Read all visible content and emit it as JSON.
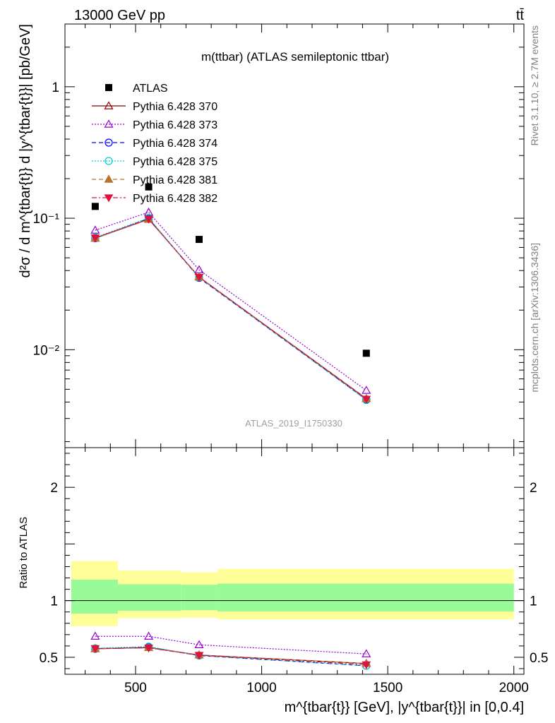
{
  "header": {
    "left": "13000 GeV pp",
    "right": "tt̄"
  },
  "side_labels": {
    "rivet": "Rivet 3.1.10, ≥ 2.7M events",
    "mcplots": "mcplots.cern.ch [arXiv:1306.3436]"
  },
  "chart_data": [
    {
      "type": "scatter",
      "panel": "main",
      "title": "m(ttbar) (ATLAS semileptonic ttbar)",
      "watermark": "ATLAS_2019_I1750330",
      "ylabel": "d²σ / d m^{tbar{t}} d |y^{tbar{t}}| [pb/GeV]",
      "yscale": "log",
      "ylim": [
        0.0018,
        3.0
      ],
      "xlim": [
        220,
        2040
      ],
      "yticks": [
        {
          "value": 1,
          "label": "1"
        },
        {
          "value": 0.1,
          "label": "10⁻¹"
        },
        {
          "value": 0.01,
          "label": "10⁻²"
        }
      ],
      "legend_position": "top-left",
      "x": [
        340,
        552,
        752,
        1415
      ],
      "series": [
        {
          "name": "ATLAS",
          "color": "#000000",
          "marker": "square",
          "line": "none",
          "values": [
            0.123,
            0.173,
            0.069,
            0.0094
          ]
        },
        {
          "name": "Pythia 6.428 370",
          "color": "#8b0000",
          "marker": "triangle-open",
          "line": "solid",
          "values": [
            0.0705,
            0.0985,
            0.0357,
            0.00425
          ]
        },
        {
          "name": "Pythia 6.428 373",
          "color": "#9400d3",
          "marker": "triangle-open",
          "line": "dotted",
          "values": [
            0.081,
            0.111,
            0.0405,
            0.0049
          ]
        },
        {
          "name": "Pythia 6.428 374",
          "color": "#0000ff",
          "marker": "circle-open",
          "line": "dashed",
          "values": [
            0.0705,
            0.0995,
            0.0352,
            0.00418
          ]
        },
        {
          "name": "Pythia 6.428 375",
          "color": "#00ced1",
          "marker": "circle-open",
          "line": "dotted",
          "values": [
            0.0715,
            0.1005,
            0.0355,
            0.00414
          ]
        },
        {
          "name": "Pythia 6.428 381",
          "color": "#b87333",
          "marker": "triangle-filled",
          "line": "dashed",
          "values": [
            0.0703,
            0.0978,
            0.0358,
            0.00425
          ]
        },
        {
          "name": "Pythia 6.428 382",
          "color": "#dc143c",
          "marker": "triangle-down-filled",
          "line": "dashdot",
          "values": [
            0.071,
            0.0985,
            0.0356,
            0.00421
          ]
        }
      ]
    },
    {
      "type": "scatter",
      "panel": "ratio",
      "xlabel": "m^{tbar{t}} [GeV], |y^{tbar{t}}| in [0,0.4]",
      "ylabel": "Ratio to ATLAS",
      "yscale": "linear",
      "ylim": [
        0.35,
        2.35
      ],
      "xlim": [
        220,
        2040
      ],
      "xticks": [
        500,
        1000,
        1500,
        2000
      ],
      "yticks": [
        {
          "value": 0.5,
          "label": "0.5"
        },
        {
          "value": 1,
          "label": "1"
        },
        {
          "value": 2,
          "label": "2"
        }
      ],
      "bands": [
        {
          "x0": 245,
          "x1": 430,
          "inner": [
            0.885,
            1.185
          ],
          "outer": [
            0.775,
            1.35
          ]
        },
        {
          "x0": 430,
          "x1": 680,
          "inner": [
            0.91,
            1.145
          ],
          "outer": [
            0.845,
            1.265
          ]
        },
        {
          "x0": 680,
          "x1": 825,
          "inner": [
            0.915,
            1.14
          ],
          "outer": [
            0.85,
            1.25
          ]
        },
        {
          "x0": 825,
          "x1": 2000,
          "inner": [
            0.905,
            1.15
          ],
          "outer": [
            0.835,
            1.28
          ]
        }
      ],
      "band_colors": {
        "inner": "#98fb98",
        "outer": "#ffff99"
      },
      "reference_line": 1,
      "x": [
        340,
        552,
        752,
        1415
      ],
      "series": [
        {
          "name": "Pythia 6.428 370",
          "color": "#8b0000",
          "marker": "triangle-open",
          "line": "solid",
          "values": [
            0.575,
            0.585,
            0.52,
            0.445
          ]
        },
        {
          "name": "Pythia 6.428 373",
          "color": "#9400d3",
          "marker": "triangle-open",
          "line": "dotted",
          "values": [
            0.685,
            0.685,
            0.61,
            0.53
          ]
        },
        {
          "name": "Pythia 6.428 374",
          "color": "#0000ff",
          "marker": "circle-open",
          "line": "dashed",
          "values": [
            0.575,
            0.59,
            0.515,
            0.425
          ]
        },
        {
          "name": "Pythia 6.428 375",
          "color": "#00ced1",
          "marker": "circle-open",
          "line": "dotted",
          "values": [
            0.58,
            0.595,
            0.515,
            0.425
          ]
        },
        {
          "name": "Pythia 6.428 381",
          "color": "#b87333",
          "marker": "triangle-filled",
          "line": "dashed",
          "values": [
            0.575,
            0.585,
            0.52,
            0.445
          ]
        },
        {
          "name": "Pythia 6.428 382",
          "color": "#dc143c",
          "marker": "triangle-down-filled",
          "line": "dashdot",
          "values": [
            0.578,
            0.583,
            0.518,
            0.435
          ]
        }
      ]
    }
  ]
}
